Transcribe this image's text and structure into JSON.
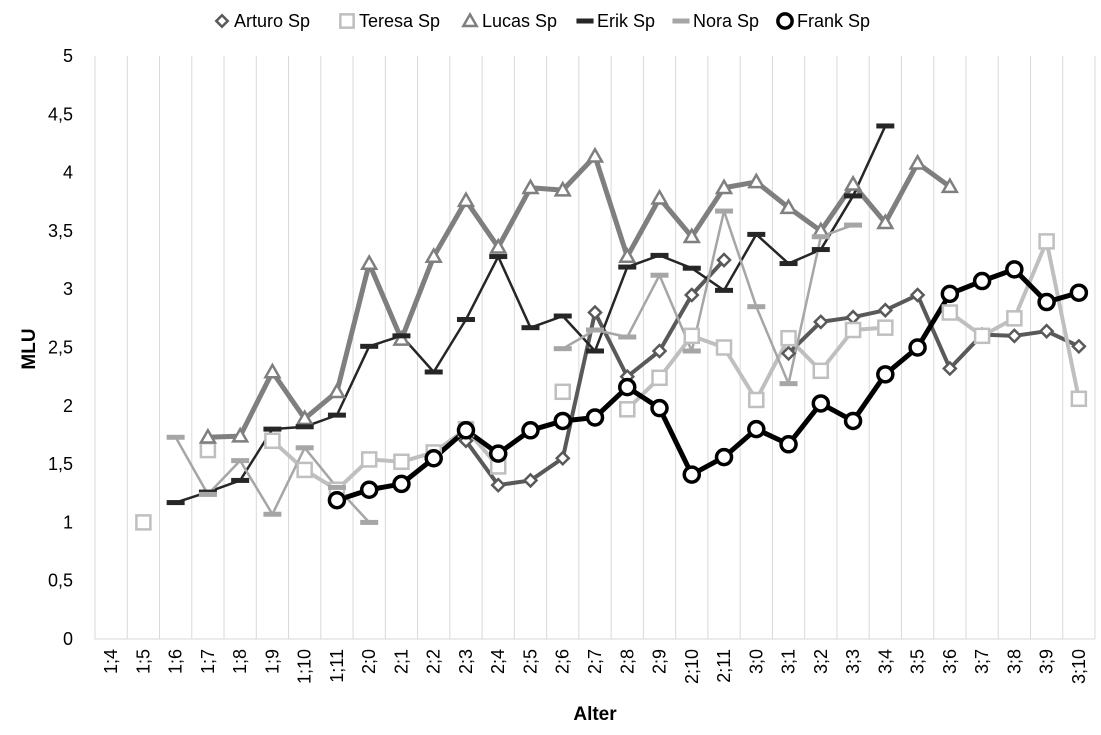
{
  "chart_data": {
    "type": "line",
    "title": "",
    "xlabel": "Alter",
    "ylabel": "MLU",
    "ylim": [
      0,
      5
    ],
    "y_ticks": [
      "0",
      "0,5",
      "1",
      "1,5",
      "2",
      "2,5",
      "3",
      "3,5",
      "4",
      "4,5",
      "5"
    ],
    "grid": "vertical",
    "legend_position": "top",
    "categories": [
      "1;4",
      "1;5",
      "1;6",
      "1;7",
      "1;8",
      "1;9",
      "1;10",
      "1;11",
      "2;0",
      "2;1",
      "2;2",
      "2;3",
      "2;4",
      "2;5",
      "2;6",
      "2;7",
      "2;8",
      "2;9",
      "2;10",
      "2;11",
      "3;0",
      "3;1",
      "3;2",
      "3;3",
      "3;4",
      "3;5",
      "3;6",
      "3;7",
      "3;8",
      "3;9",
      "3;10"
    ],
    "series": [
      {
        "name": "Arturo Sp",
        "color": "#595959",
        "marker": "diamond",
        "width": 4,
        "values": [
          null,
          null,
          null,
          null,
          null,
          null,
          null,
          null,
          null,
          null,
          null,
          1.7,
          1.32,
          1.36,
          1.55,
          2.8,
          2.25,
          2.47,
          2.95,
          3.25,
          null,
          2.45,
          2.72,
          2.76,
          2.82,
          2.95,
          2.32,
          2.61,
          2.6,
          2.64,
          2.51
        ]
      },
      {
        "name": "Teresa Sp",
        "color": "#bfbfbf",
        "marker": "square",
        "width": 4,
        "values": [
          null,
          1.0,
          null,
          1.62,
          null,
          1.7,
          1.45,
          1.28,
          1.54,
          1.52,
          1.6,
          1.8,
          1.48,
          null,
          2.12,
          null,
          1.97,
          2.24,
          2.6,
          2.5,
          2.05,
          2.58,
          2.3,
          2.65,
          2.67,
          null,
          2.8,
          2.6,
          2.75,
          3.41,
          2.06
        ]
      },
      {
        "name": "Lucas Sp",
        "color": "#7f7f7f",
        "marker": "triangle",
        "width": 5,
        "values": [
          null,
          null,
          null,
          1.73,
          1.74,
          2.29,
          1.89,
          2.12,
          3.22,
          2.57,
          3.28,
          3.76,
          3.36,
          3.87,
          3.85,
          4.14,
          3.28,
          3.78,
          3.45,
          3.87,
          3.92,
          3.7,
          3.5,
          3.9,
          3.57,
          4.08,
          3.88,
          null,
          null,
          null,
          null
        ]
      },
      {
        "name": "Erik Sp",
        "color": "#262626",
        "marker": "dash",
        "width": 2.5,
        "values": [
          null,
          null,
          1.17,
          1.26,
          1.36,
          1.8,
          1.82,
          1.92,
          2.51,
          2.6,
          2.29,
          2.74,
          3.28,
          2.67,
          2.77,
          2.47,
          3.19,
          3.29,
          3.18,
          2.99,
          3.47,
          3.22,
          3.34,
          3.8,
          4.4,
          null,
          null,
          null,
          null,
          null,
          null
        ]
      },
      {
        "name": "Nora Sp",
        "color": "#a6a6a6",
        "marker": "dash",
        "width": 2.5,
        "values": [
          null,
          null,
          1.73,
          1.24,
          1.53,
          1.07,
          1.64,
          1.3,
          1.0,
          null,
          null,
          null,
          null,
          null,
          2.49,
          2.65,
          2.59,
          3.12,
          2.47,
          3.67,
          2.85,
          2.19,
          3.45,
          3.55,
          null,
          null,
          null,
          null,
          null,
          null,
          null
        ]
      },
      {
        "name": "Frank Sp",
        "color": "#000000",
        "marker": "circle",
        "width": 5,
        "values": [
          null,
          null,
          null,
          null,
          null,
          null,
          null,
          1.19,
          1.28,
          1.33,
          1.55,
          1.79,
          1.59,
          1.79,
          1.87,
          1.9,
          2.16,
          1.98,
          1.41,
          1.56,
          1.8,
          1.67,
          2.02,
          1.87,
          2.27,
          2.5,
          2.96,
          3.07,
          3.17,
          2.89,
          2.97
        ]
      }
    ]
  }
}
